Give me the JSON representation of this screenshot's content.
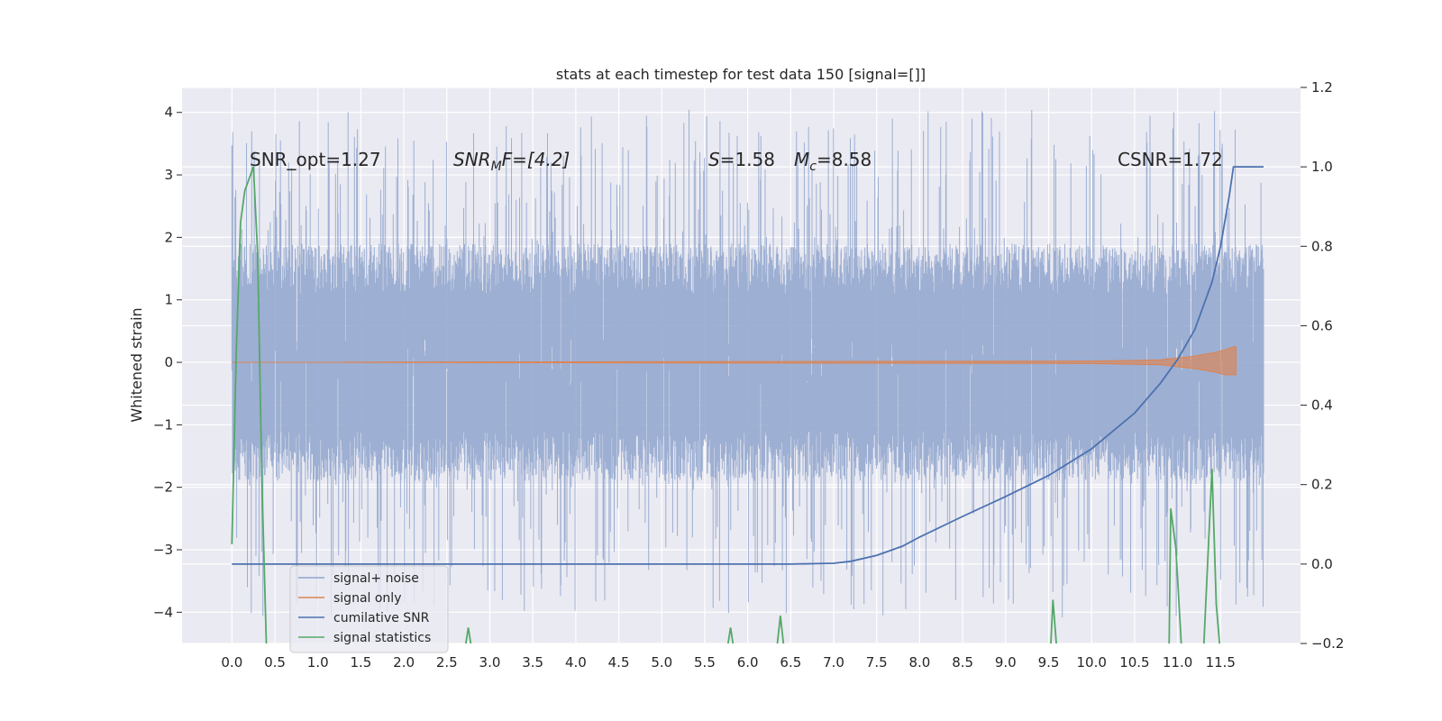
{
  "chart_data": {
    "type": "line",
    "title": "stats at each timestep for test data 150 [signal=[]]",
    "ylabel": "Whitened strain",
    "xlabel": "",
    "xlim": [
      -0.58,
      12.43
    ],
    "ylim": [
      -4.5,
      4.4
    ],
    "y2lim": [
      -0.2,
      1.2
    ],
    "x_ticks": [
      0.0,
      0.5,
      1.0,
      1.5,
      2.0,
      2.5,
      3.0,
      3.5,
      4.0,
      4.5,
      5.0,
      5.5,
      6.0,
      6.5,
      7.0,
      7.5,
      8.0,
      8.5,
      9.0,
      9.5,
      10.0,
      10.5,
      11.0,
      11.5
    ],
    "x_tick_labels": [
      "0.0",
      "0.5",
      "1.0",
      "1.5",
      "2.0",
      "2.5",
      "3.0",
      "3.5",
      "4.0",
      "4.5",
      "5.0",
      "5.5",
      "6.0",
      "6.5",
      "7.0",
      "7.5",
      "8.0",
      "8.5",
      "9.0",
      "9.5",
      "10.0",
      "10.5",
      "11.0",
      "11.5"
    ],
    "y_ticks": [
      4,
      3,
      2,
      1,
      0,
      -1,
      -2,
      -3,
      -4
    ],
    "y_tick_labels": [
      "4",
      "3",
      "2",
      "1",
      "0",
      "−1",
      "−2",
      "−3",
      "−4"
    ],
    "y2_ticks": [
      1.2,
      1.0,
      0.8,
      0.6,
      0.4,
      0.2,
      0.0,
      -0.2
    ],
    "y2_tick_labels": [
      "1.2",
      "1.0",
      "0.8",
      "0.6",
      "0.4",
      "0.2",
      "0.0",
      "−0.2"
    ],
    "grid": true,
    "legend_position": "lower-left",
    "annotations": {
      "snr_opt": "SNR_opt=1.27",
      "snr_mf_main": "SNR",
      "snr_mf_sub": "M",
      "snr_mf_rest": "F=[4.2]",
      "s_italic": "S",
      "s_value": "=1.58",
      "mc_main": "M",
      "mc_sub": "c",
      "mc_value": "=8.58",
      "csnr": "CSNR=1.72"
    },
    "series": [
      {
        "name": "signal+ noise",
        "axis": "left",
        "color": "#8fa4cc",
        "x_range": [
          0.0,
          12.0
        ],
        "typical_range": [
          -1.9,
          1.9
        ],
        "extreme_range": [
          -4.1,
          4.05
        ]
      },
      {
        "name": "signal only",
        "axis": "left",
        "color": "#dd8452",
        "x": [
          0.0,
          10.0,
          10.8,
          11.2,
          11.45,
          11.55,
          11.65,
          11.68
        ],
        "upper": [
          0.0,
          0.02,
          0.04,
          0.1,
          0.16,
          0.2,
          0.25,
          0.25
        ],
        "lower": [
          0.0,
          -0.02,
          -0.04,
          -0.1,
          -0.16,
          -0.2,
          -0.2,
          -0.2
        ]
      },
      {
        "name": "cumilative SNR",
        "axis": "right",
        "color": "#4c72b0",
        "x": [
          0.0,
          6.5,
          7.0,
          7.2,
          7.5,
          7.8,
          8.0,
          8.5,
          9.0,
          9.5,
          10.0,
          10.5,
          10.8,
          11.0,
          11.2,
          11.4,
          11.5,
          11.6,
          11.65,
          12.0
        ],
        "y": [
          0.0,
          0.0,
          0.002,
          0.007,
          0.022,
          0.045,
          0.068,
          0.12,
          0.17,
          0.223,
          0.29,
          0.38,
          0.455,
          0.515,
          0.59,
          0.71,
          0.8,
          0.925,
          1.0,
          1.0
        ]
      },
      {
        "name": "signal statistics",
        "axis": "right",
        "color": "#55a868",
        "x": [
          0.0,
          0.05,
          0.1,
          0.15,
          0.2,
          0.25,
          0.3,
          0.35,
          0.4,
          0.45,
          2.7,
          2.75,
          2.8,
          5.75,
          5.8,
          5.85,
          6.33,
          6.38,
          6.43,
          9.52,
          9.55,
          9.6,
          10.9,
          10.92,
          10.98,
          11.05,
          11.3,
          11.4,
          11.45,
          11.5
        ],
        "y": [
          0.05,
          0.53,
          0.86,
          0.94,
          0.97,
          1.0,
          0.78,
          0.2,
          -0.2,
          -0.23,
          -0.23,
          -0.16,
          -0.23,
          -0.23,
          -0.16,
          -0.23,
          -0.23,
          -0.13,
          -0.23,
          -0.23,
          -0.09,
          -0.23,
          -0.23,
          0.14,
          0.04,
          -0.23,
          -0.23,
          0.24,
          -0.1,
          -0.23
        ]
      }
    ]
  }
}
